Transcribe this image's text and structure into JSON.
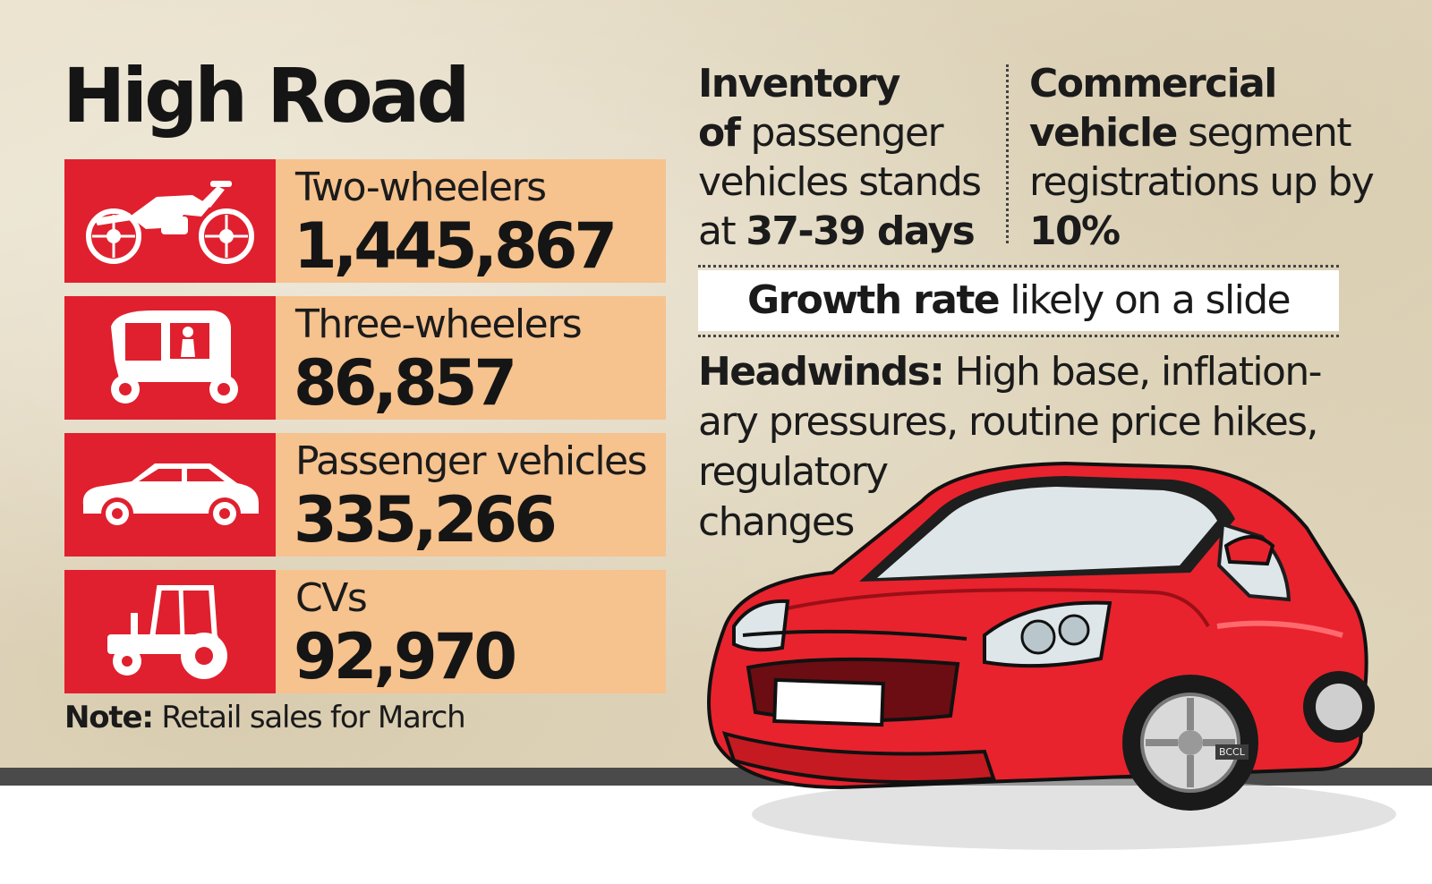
{
  "title": "High Road",
  "rows": [
    {
      "icon": "motorcycle-icon",
      "label": "Two-wheelers",
      "value": "1,445,867"
    },
    {
      "icon": "auto-rickshaw-icon",
      "label": "Three-wheelers",
      "value": "86,857"
    },
    {
      "icon": "car-icon",
      "label": "Passenger vehicles",
      "value": "335,266"
    },
    {
      "icon": "tractor-icon",
      "label": "CVs",
      "value": "92,970"
    }
  ],
  "note": {
    "prefix": "Note:",
    "text": " Retail sales for March"
  },
  "inventory": {
    "bold1": "Inventory",
    "bold2": "of",
    "text1": " passenger vehicles stands at ",
    "bold3": "37-39 days"
  },
  "commercial": {
    "bold1": "Commercial vehicle",
    "text1": " segment registrations up by ",
    "bold2": "10%"
  },
  "growth": {
    "bold": "Growth rate",
    "text": " likely on a slide"
  },
  "headwinds": {
    "bold": "Headwinds:",
    "line1": " High base, inflation-",
    "line2": "ary pressures, routine price hikes,",
    "line3": "regulatory",
    "line4": "changes"
  },
  "credit": "BCCL",
  "colors": {
    "accent_red": "#e0202e",
    "value_box": "#f6c28e",
    "background": "#e5dcc5",
    "car_red": "#e8232d"
  }
}
